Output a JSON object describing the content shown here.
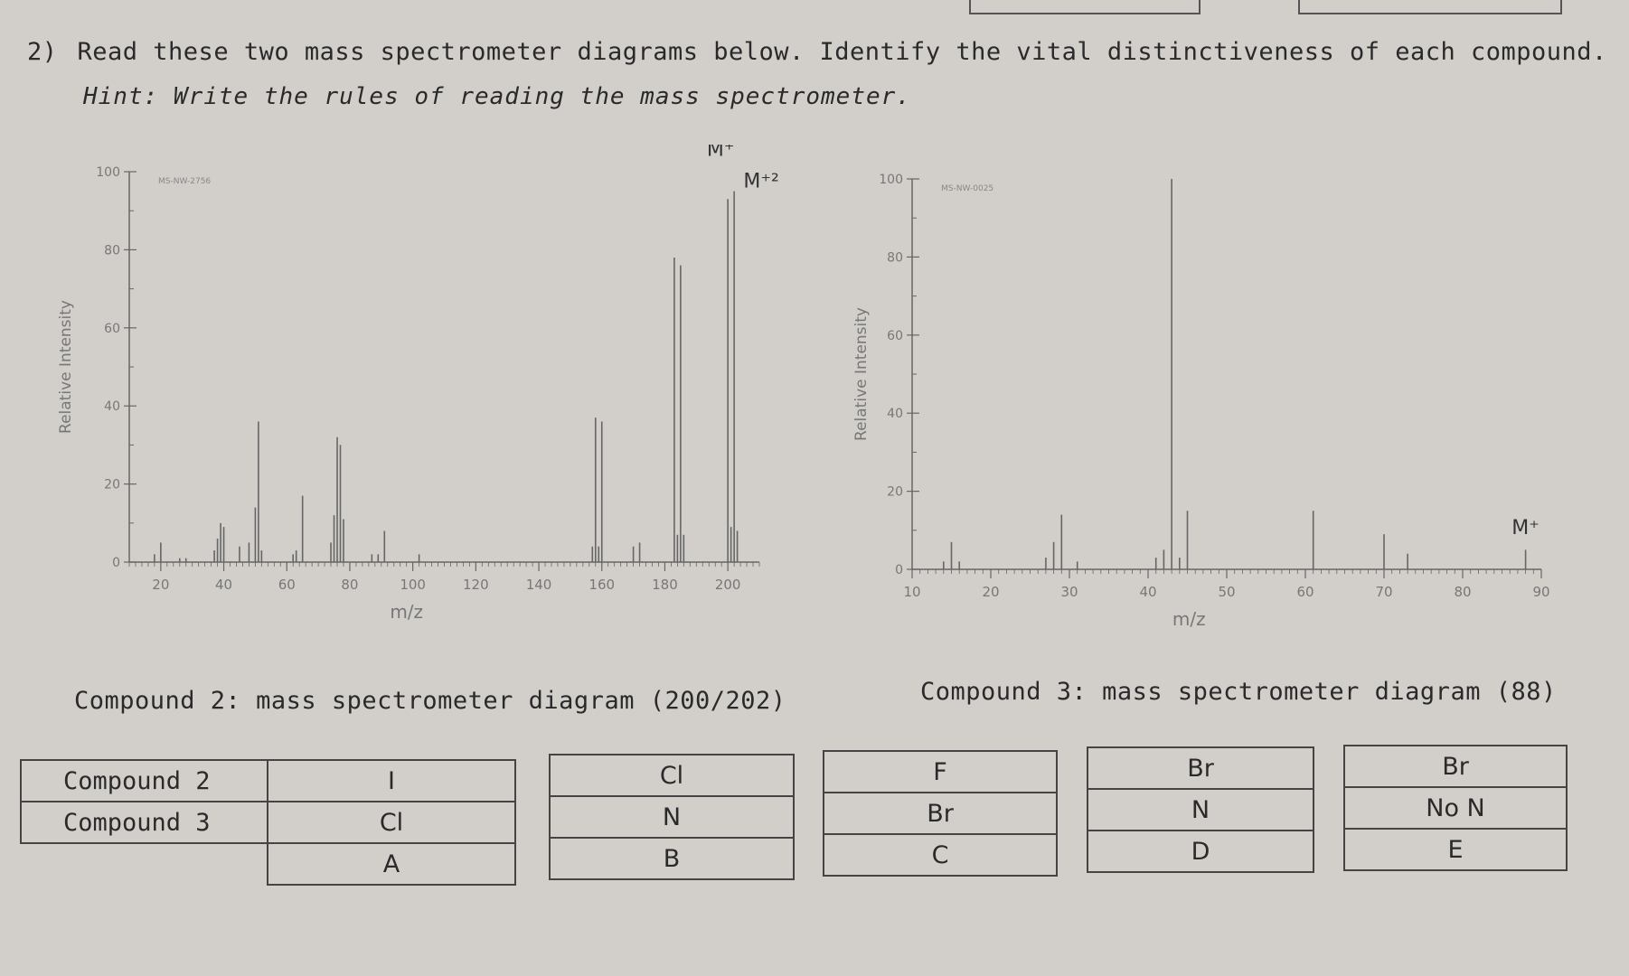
{
  "question": {
    "number": "2)",
    "text": "Read these two mass spectrometer diagrams below. Identify the vital distinctiveness of each compound.",
    "hint": "Hint: Write the rules of reading the mass spectrometer."
  },
  "chart_data": [
    {
      "type": "bar",
      "id_label": "MS-NW-2756",
      "ylabel": "Relative Intensity",
      "xlabel": "m/z",
      "xlim": [
        10,
        210
      ],
      "ylim": [
        0,
        100
      ],
      "x_ticks": [
        20,
        40,
        60,
        80,
        100,
        120,
        140,
        160,
        180,
        200
      ],
      "y_ticks": [
        0,
        20,
        40,
        60,
        80,
        100
      ],
      "peaks": [
        {
          "x": 18,
          "y": 2
        },
        {
          "x": 20,
          "y": 5
        },
        {
          "x": 26,
          "y": 1
        },
        {
          "x": 28,
          "y": 1
        },
        {
          "x": 37,
          "y": 3
        },
        {
          "x": 38,
          "y": 6
        },
        {
          "x": 39,
          "y": 10
        },
        {
          "x": 40,
          "y": 9
        },
        {
          "x": 45,
          "y": 4
        },
        {
          "x": 48,
          "y": 5
        },
        {
          "x": 50,
          "y": 14
        },
        {
          "x": 51,
          "y": 36
        },
        {
          "x": 52,
          "y": 3
        },
        {
          "x": 62,
          "y": 2
        },
        {
          "x": 63,
          "y": 3
        },
        {
          "x": 65,
          "y": 17
        },
        {
          "x": 74,
          "y": 5
        },
        {
          "x": 75,
          "y": 12
        },
        {
          "x": 76,
          "y": 32
        },
        {
          "x": 77,
          "y": 30
        },
        {
          "x": 78,
          "y": 11
        },
        {
          "x": 87,
          "y": 2
        },
        {
          "x": 89,
          "y": 2
        },
        {
          "x": 91,
          "y": 8
        },
        {
          "x": 102,
          "y": 2
        },
        {
          "x": 157,
          "y": 4
        },
        {
          "x": 158,
          "y": 37
        },
        {
          "x": 159,
          "y": 4
        },
        {
          "x": 160,
          "y": 36
        },
        {
          "x": 170,
          "y": 4
        },
        {
          "x": 172,
          "y": 5
        },
        {
          "x": 183,
          "y": 78
        },
        {
          "x": 184,
          "y": 7
        },
        {
          "x": 185,
          "y": 76
        },
        {
          "x": 186,
          "y": 7
        },
        {
          "x": 200,
          "y": 93
        },
        {
          "x": 201,
          "y": 9
        },
        {
          "x": 202,
          "y": 95
        },
        {
          "x": 203,
          "y": 8
        }
      ],
      "annotations": [
        {
          "text": "M⁺",
          "x": 200
        },
        {
          "text": "M⁺²",
          "x": 202
        }
      ]
    },
    {
      "type": "bar",
      "id_label": "MS-NW-0025",
      "ylabel": "Relative Intensity",
      "xlabel": "m/z",
      "xlim": [
        10,
        90
      ],
      "ylim": [
        0,
        100
      ],
      "x_ticks": [
        10,
        20,
        30,
        40,
        50,
        60,
        70,
        80,
        90
      ],
      "y_ticks": [
        0,
        20,
        40,
        60,
        80,
        100
      ],
      "peaks": [
        {
          "x": 14,
          "y": 2
        },
        {
          "x": 15,
          "y": 7
        },
        {
          "x": 16,
          "y": 2
        },
        {
          "x": 27,
          "y": 3
        },
        {
          "x": 28,
          "y": 7
        },
        {
          "x": 29,
          "y": 14
        },
        {
          "x": 31,
          "y": 2
        },
        {
          "x": 41,
          "y": 3
        },
        {
          "x": 42,
          "y": 5
        },
        {
          "x": 43,
          "y": 100
        },
        {
          "x": 44,
          "y": 3
        },
        {
          "x": 45,
          "y": 15
        },
        {
          "x": 61,
          "y": 15
        },
        {
          "x": 70,
          "y": 9
        },
        {
          "x": 73,
          "y": 4
        },
        {
          "x": 88,
          "y": 5
        }
      ],
      "annotations": [
        {
          "text": "M⁺",
          "x": 88
        }
      ]
    }
  ],
  "captions": {
    "compound2": "Compound 2: mass spectrometer diagram (200/202)",
    "compound3": "Compound 3: mass spectrometer diagram (88)"
  },
  "tables": {
    "main": {
      "rows": [
        {
          "label": "Compound 2",
          "value": "I"
        },
        {
          "label": "Compound 3",
          "value": "Cl"
        }
      ],
      "option": "A"
    },
    "options": [
      {
        "rows": [
          "Cl",
          "N"
        ],
        "option": "B"
      },
      {
        "rows": [
          "F",
          "Br"
        ],
        "option": "C"
      },
      {
        "rows": [
          "Br",
          "N"
        ],
        "option": "D"
      },
      {
        "rows": [
          "Br",
          "No N"
        ],
        "option": "E"
      }
    ]
  }
}
